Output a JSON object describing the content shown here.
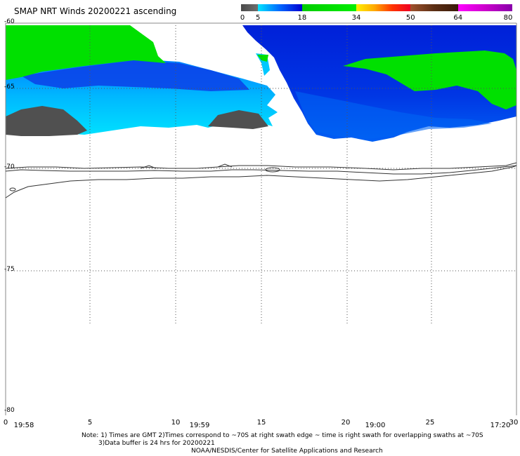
{
  "title": "SMAP NRT Winds 20200221 ascending",
  "colorbar": {
    "ticks": [
      "0",
      "5",
      "18",
      "34",
      "50",
      "64",
      "80"
    ],
    "segments": [
      {
        "from": 0,
        "to": 5,
        "colors": [
          "#4a4a4a",
          "#6e6e6e"
        ]
      },
      {
        "from": 5,
        "to": 18,
        "colors": [
          "#00e5ff",
          "#0066ff",
          "#0000d0"
        ]
      },
      {
        "from": 18,
        "to": 34,
        "colors": [
          "#00cc00",
          "#00ee00"
        ]
      },
      {
        "from": 34,
        "to": 50,
        "colors": [
          "#ffee00",
          "#ffaa00",
          "#ff3300",
          "#ee0022"
        ]
      },
      {
        "from": 50,
        "to": 64,
        "colors": [
          "#a0522d",
          "#5a2e14",
          "#3a1a0a"
        ]
      },
      {
        "from": 64,
        "to": 80,
        "colors": [
          "#ff00ff",
          "#cc00cc",
          "#8800aa"
        ]
      }
    ]
  },
  "map": {
    "lat_labels": [
      "-60",
      "-65",
      "-70",
      "-75",
      "-80"
    ],
    "lon_labels": [
      "0",
      "5",
      "10",
      "15",
      "20",
      "25",
      "30"
    ],
    "time_labels": [
      "19:58",
      "19:59",
      "19:00",
      "17:20"
    ],
    "region": {
      "lon": [
        0,
        30
      ],
      "lat": [
        -80,
        -60
      ]
    }
  },
  "notes": {
    "line1": "Note: 1) Times are GMT 2)Times correspond to ~70S at right swath edge ~ time is right swath for overlapping swaths at ~70S",
    "line2": "3)Data buffer is 24 hrs for 20200221",
    "line3": "NOAA/NESDIS/Center for Satellite Applications and Research"
  },
  "colors": {
    "land_wind_dark": "#4d4d4d",
    "wind_cyan": "#00d8ff",
    "wind_blue": "#0044ee",
    "wind_green": "#00e000",
    "grid": "#555555",
    "coast": "#333333"
  }
}
